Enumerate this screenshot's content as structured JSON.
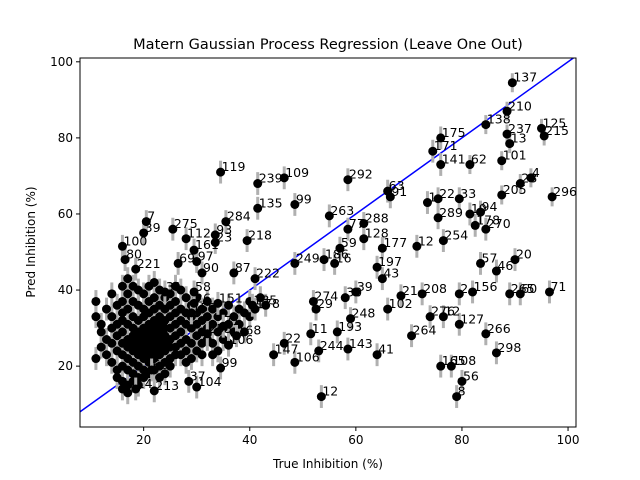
{
  "chart_data": {
    "type": "scatter",
    "title": "Matern Gaussian Process Regression (Leave One Out)",
    "xlabel": "True Inhibition (%)",
    "ylabel": "Pred Inhibition (%)",
    "xlim": [
      8,
      101.5
    ],
    "ylim": [
      4,
      101
    ],
    "xticks": [
      20,
      40,
      60,
      80,
      100
    ],
    "yticks": [
      20,
      40,
      60,
      80,
      100
    ],
    "grid": false,
    "legend": "none",
    "identity_line": {
      "from": [
        0,
        0
      ],
      "to": [
        110,
        110
      ],
      "color": "#0000ff"
    },
    "point_color": "#000000",
    "errorbar_color": "#b0b0b0",
    "labeled_points": [
      {
        "label": "137",
        "x": 89.5,
        "y": 94.5,
        "err": 2.5
      },
      {
        "label": "210",
        "x": 88.5,
        "y": 87.0,
        "err": 2.5
      },
      {
        "label": "138",
        "x": 84.5,
        "y": 83.5,
        "err": 2.5
      },
      {
        "label": "237",
        "x": 88.5,
        "y": 81.0,
        "err": 2.5
      },
      {
        "label": "125",
        "x": 95.0,
        "y": 82.5,
        "err": 2.5
      },
      {
        "label": "215",
        "x": 95.5,
        "y": 80.5,
        "err": 2.5
      },
      {
        "label": "13",
        "x": 89.0,
        "y": 78.5,
        "err": 2.5
      },
      {
        "label": "175",
        "x": 76.0,
        "y": 80.0,
        "err": 3.0
      },
      {
        "label": "171",
        "x": 74.5,
        "y": 76.5,
        "err": 3.0
      },
      {
        "label": "141",
        "x": 76.0,
        "y": 73.0,
        "err": 3.0
      },
      {
        "label": "62",
        "x": 81.5,
        "y": 73.0,
        "err": 2.5
      },
      {
        "label": "101",
        "x": 87.5,
        "y": 74.0,
        "err": 2.5
      },
      {
        "label": "4",
        "x": 93.0,
        "y": 69.5,
        "err": 2.5
      },
      {
        "label": "28",
        "x": 91.0,
        "y": 68.0,
        "err": 2.5
      },
      {
        "label": "205",
        "x": 87.5,
        "y": 65.0,
        "err": 2.5
      },
      {
        "label": "296",
        "x": 97.0,
        "y": 64.5,
        "err": 2.5
      },
      {
        "label": "119",
        "x": 34.5,
        "y": 71.0,
        "err": 3.0
      },
      {
        "label": "239",
        "x": 41.5,
        "y": 68.0,
        "err": 3.0
      },
      {
        "label": "109",
        "x": 46.5,
        "y": 69.5,
        "err": 3.0
      },
      {
        "label": "292",
        "x": 58.5,
        "y": 69.0,
        "err": 3.0
      },
      {
        "label": "63",
        "x": 66.0,
        "y": 66.0,
        "err": 3.0
      },
      {
        "label": "91",
        "x": 66.5,
        "y": 64.5,
        "err": 3.0
      },
      {
        "label": "1",
        "x": 73.5,
        "y": 63.0,
        "err": 3.0
      },
      {
        "label": "22",
        "x": 75.5,
        "y": 64.0,
        "err": 3.0
      },
      {
        "label": "33",
        "x": 79.5,
        "y": 64.0,
        "err": 3.0
      },
      {
        "label": "99",
        "x": 48.5,
        "y": 62.5,
        "err": 3.0
      },
      {
        "label": "135",
        "x": 41.5,
        "y": 61.5,
        "err": 3.0
      },
      {
        "label": "263",
        "x": 55.0,
        "y": 59.5,
        "err": 3.0
      },
      {
        "label": "289",
        "x": 75.5,
        "y": 59.0,
        "err": 3.0
      },
      {
        "label": "19",
        "x": 81.5,
        "y": 60.0,
        "err": 3.0
      },
      {
        "label": "94",
        "x": 83.5,
        "y": 60.5,
        "err": 3.0
      },
      {
        "label": "270",
        "x": 84.5,
        "y": 56.0,
        "err": 3.0
      },
      {
        "label": "178",
        "x": 82.5,
        "y": 57.0,
        "err": 3.0
      },
      {
        "label": "7",
        "x": 20.5,
        "y": 58.0,
        "err": 3.0
      },
      {
        "label": "284",
        "x": 35.5,
        "y": 58.0,
        "err": 3.0
      },
      {
        "label": "275",
        "x": 25.5,
        "y": 56.0,
        "err": 3.0
      },
      {
        "label": "288",
        "x": 61.5,
        "y": 57.5,
        "err": 3.0
      },
      {
        "label": "77",
        "x": 58.5,
        "y": 56.0,
        "err": 3.0
      },
      {
        "label": "128",
        "x": 61.5,
        "y": 53.5,
        "err": 3.0
      },
      {
        "label": "39",
        "x": 20.0,
        "y": 55.0,
        "err": 3.0
      },
      {
        "label": "112",
        "x": 28.0,
        "y": 53.5,
        "err": 3.0
      },
      {
        "label": "93",
        "x": 33.5,
        "y": 54.5,
        "err": 3.0
      },
      {
        "label": "23",
        "x": 33.5,
        "y": 52.5,
        "err": 3.0
      },
      {
        "label": "218",
        "x": 39.5,
        "y": 53.0,
        "err": 3.0
      },
      {
        "label": "254",
        "x": 76.5,
        "y": 53.0,
        "err": 3.0
      },
      {
        "label": "12",
        "x": 71.5,
        "y": 51.5,
        "err": 3.0
      },
      {
        "label": "177",
        "x": 65.0,
        "y": 51.0,
        "err": 3.0
      },
      {
        "label": "59",
        "x": 57.0,
        "y": 51.0,
        "err": 3.0
      },
      {
        "label": "100",
        "x": 16.0,
        "y": 51.5,
        "err": 3.0
      },
      {
        "label": "161",
        "x": 29.5,
        "y": 50.5,
        "err": 3.0
      },
      {
        "label": "20",
        "x": 90.0,
        "y": 48.0,
        "err": 3.0
      },
      {
        "label": "186",
        "x": 54.0,
        "y": 48.0,
        "err": 3.0
      },
      {
        "label": "16",
        "x": 56.0,
        "y": 47.0,
        "err": 3.0
      },
      {
        "label": "249",
        "x": 48.5,
        "y": 47.0,
        "err": 3.0
      },
      {
        "label": "69",
        "x": 26.5,
        "y": 47.0,
        "err": 3.0
      },
      {
        "label": "197",
        "x": 64.0,
        "y": 46.0,
        "err": 3.0
      },
      {
        "label": "57",
        "x": 83.5,
        "y": 47.0,
        "err": 3.0
      },
      {
        "label": "46",
        "x": 86.5,
        "y": 45.0,
        "err": 3.0
      },
      {
        "label": "90",
        "x": 31.0,
        "y": 44.5,
        "err": 3.0
      },
      {
        "label": "87",
        "x": 37.0,
        "y": 44.5,
        "err": 3.0
      },
      {
        "label": "43",
        "x": 65.0,
        "y": 43.0,
        "err": 3.0
      },
      {
        "label": "222",
        "x": 41.0,
        "y": 43.0,
        "err": 3.0
      },
      {
        "label": "208",
        "x": 72.5,
        "y": 39.0,
        "err": 3.0
      },
      {
        "label": "2",
        "x": 79.5,
        "y": 39.0,
        "err": 3.0
      },
      {
        "label": "156",
        "x": 82.0,
        "y": 39.5,
        "err": 3.0
      },
      {
        "label": "71",
        "x": 96.5,
        "y": 39.5,
        "err": 3.0
      },
      {
        "label": "265",
        "x": 89.0,
        "y": 39.0,
        "err": 3.0
      },
      {
        "label": "60",
        "x": 91.0,
        "y": 39.0,
        "err": 3.0
      },
      {
        "label": "39",
        "x": 60.0,
        "y": 39.5,
        "err": 3.0
      },
      {
        "label": "30",
        "x": 58.0,
        "y": 38.0,
        "err": 3.0
      },
      {
        "label": "21",
        "x": 68.5,
        "y": 38.5,
        "err": 3.0
      },
      {
        "label": "274",
        "x": 52.0,
        "y": 37.0,
        "err": 3.0
      },
      {
        "label": "102",
        "x": 66.0,
        "y": 35.0,
        "err": 3.0
      },
      {
        "label": "29",
        "x": 52.5,
        "y": 35.0,
        "err": 3.0
      },
      {
        "label": "185",
        "x": 40.5,
        "y": 36.0,
        "err": 3.0
      },
      {
        "label": "151",
        "x": 34.0,
        "y": 36.5,
        "err": 3.0
      },
      {
        "label": "248",
        "x": 59.0,
        "y": 32.5,
        "err": 3.0
      },
      {
        "label": "276",
        "x": 74.0,
        "y": 33.0,
        "err": 3.0
      },
      {
        "label": "12",
        "x": 76.5,
        "y": 33.0,
        "err": 3.0
      },
      {
        "label": "127",
        "x": 79.5,
        "y": 31.0,
        "err": 3.0
      },
      {
        "label": "266",
        "x": 84.5,
        "y": 28.5,
        "err": 3.0
      },
      {
        "label": "264",
        "x": 70.5,
        "y": 28.0,
        "err": 3.0
      },
      {
        "label": "193",
        "x": 56.5,
        "y": 29.0,
        "err": 3.0
      },
      {
        "label": "11",
        "x": 51.5,
        "y": 28.5,
        "err": 3.0
      },
      {
        "label": "22",
        "x": 46.5,
        "y": 26.0,
        "err": 3.0
      },
      {
        "label": "244",
        "x": 53.0,
        "y": 24.0,
        "err": 3.0
      },
      {
        "label": "143",
        "x": 58.5,
        "y": 24.5,
        "err": 3.0
      },
      {
        "label": "147",
        "x": 44.5,
        "y": 23.0,
        "err": 3.0
      },
      {
        "label": "106",
        "x": 48.5,
        "y": 21.0,
        "err": 3.0
      },
      {
        "label": "41",
        "x": 64.0,
        "y": 23.0,
        "err": 3.0
      },
      {
        "label": "298",
        "x": 86.5,
        "y": 23.5,
        "err": 3.0
      },
      {
        "label": "165",
        "x": 76.0,
        "y": 20.0,
        "err": 3.0
      },
      {
        "label": "108",
        "x": 78.0,
        "y": 20.0,
        "err": 3.0
      },
      {
        "label": "56",
        "x": 80.0,
        "y": 16.0,
        "err": 3.0
      },
      {
        "label": "8",
        "x": 79.0,
        "y": 12.0,
        "err": 3.0
      },
      {
        "label": "12",
        "x": 53.5,
        "y": 12.0,
        "err": 3.0
      },
      {
        "label": "99",
        "x": 34.5,
        "y": 19.5,
        "err": 3.0
      },
      {
        "label": "37",
        "x": 28.5,
        "y": 16.0,
        "err": 3.0
      },
      {
        "label": "104",
        "x": 30.0,
        "y": 14.5,
        "err": 3.0
      },
      {
        "label": "213",
        "x": 22.0,
        "y": 13.5,
        "err": 3.0
      },
      {
        "label": "14",
        "x": 18.5,
        "y": 14.0,
        "err": 3.0
      },
      {
        "label": "221",
        "x": 18.5,
        "y": 45.5,
        "err": 3.0
      },
      {
        "label": "80",
        "x": 16.5,
        "y": 48.0,
        "err": 3.0
      },
      {
        "label": "97",
        "x": 30.0,
        "y": 47.5,
        "err": 3.0
      },
      {
        "label": "58",
        "x": 29.5,
        "y": 39.5,
        "err": 3.0
      },
      {
        "label": "31",
        "x": 24.0,
        "y": 39.5,
        "err": 3.0
      },
      {
        "label": "178",
        "x": 41.0,
        "y": 35.0,
        "err": 3.0
      },
      {
        "label": "26",
        "x": 29.5,
        "y": 36.5,
        "err": 3.0
      },
      {
        "label": "159",
        "x": 29.0,
        "y": 34.0,
        "err": 3.0
      },
      {
        "label": "168",
        "x": 37.5,
        "y": 28.0,
        "err": 3.0
      },
      {
        "label": "106",
        "x": 36.0,
        "y": 25.5,
        "err": 3.0
      },
      {
        "label": "255",
        "x": 32.0,
        "y": 28.5,
        "err": 3.0
      },
      {
        "label": "71",
        "x": 35.0,
        "y": 30.5,
        "err": 3.0
      },
      {
        "label": "66",
        "x": 21.5,
        "y": 19.0,
        "err": 3.0
      }
    ],
    "cluster_points": [
      [
        11,
        37
      ],
      [
        11,
        33
      ],
      [
        12,
        31
      ],
      [
        12,
        25
      ],
      [
        11,
        22
      ],
      [
        12,
        29
      ],
      [
        13,
        35
      ],
      [
        13,
        27
      ],
      [
        13,
        23
      ],
      [
        14,
        39
      ],
      [
        14,
        33
      ],
      [
        14,
        30
      ],
      [
        14,
        26
      ],
      [
        14,
        21
      ],
      [
        15,
        36
      ],
      [
        15,
        31
      ],
      [
        15,
        28
      ],
      [
        15,
        24
      ],
      [
        15,
        19
      ],
      [
        15,
        17
      ],
      [
        16,
        41
      ],
      [
        16,
        37
      ],
      [
        16,
        34
      ],
      [
        16,
        32
      ],
      [
        16,
        29
      ],
      [
        16,
        26
      ],
      [
        16,
        23
      ],
      [
        16,
        20
      ],
      [
        16,
        16
      ],
      [
        16,
        14
      ],
      [
        17,
        43
      ],
      [
        17,
        39
      ],
      [
        17,
        35
      ],
      [
        17,
        31
      ],
      [
        17,
        27
      ],
      [
        17,
        25
      ],
      [
        17,
        22
      ],
      [
        17,
        19
      ],
      [
        17,
        15
      ],
      [
        17,
        13
      ],
      [
        18,
        41
      ],
      [
        18,
        37
      ],
      [
        18,
        33
      ],
      [
        18,
        30
      ],
      [
        18,
        28
      ],
      [
        18,
        26
      ],
      [
        18,
        24
      ],
      [
        18,
        21
      ],
      [
        18,
        18
      ],
      [
        18,
        16
      ],
      [
        19,
        40
      ],
      [
        19,
        36
      ],
      [
        19,
        32
      ],
      [
        19,
        29
      ],
      [
        19,
        27
      ],
      [
        19,
        25
      ],
      [
        19,
        23
      ],
      [
        19,
        20
      ],
      [
        19,
        17
      ],
      [
        19,
        15
      ],
      [
        20,
        39
      ],
      [
        20,
        35
      ],
      [
        20,
        33
      ],
      [
        20,
        30
      ],
      [
        20,
        28
      ],
      [
        20,
        26
      ],
      [
        20,
        24
      ],
      [
        20,
        22
      ],
      [
        20,
        19
      ],
      [
        20,
        17
      ],
      [
        21,
        41
      ],
      [
        21,
        37
      ],
      [
        21,
        34
      ],
      [
        21,
        31
      ],
      [
        21,
        29
      ],
      [
        21,
        27
      ],
      [
        21,
        25
      ],
      [
        21,
        23
      ],
      [
        21,
        21
      ],
      [
        21,
        18
      ],
      [
        22,
        42
      ],
      [
        22,
        38
      ],
      [
        22,
        35
      ],
      [
        22,
        32
      ],
      [
        22,
        30
      ],
      [
        22,
        28
      ],
      [
        22,
        26
      ],
      [
        22,
        24
      ],
      [
        22,
        22
      ],
      [
        22,
        19
      ],
      [
        23,
        40
      ],
      [
        23,
        36
      ],
      [
        23,
        33
      ],
      [
        23,
        31
      ],
      [
        23,
        29
      ],
      [
        23,
        27
      ],
      [
        23,
        25
      ],
      [
        23,
        23
      ],
      [
        23,
        20
      ],
      [
        23,
        17
      ],
      [
        24,
        38
      ],
      [
        24,
        35
      ],
      [
        24,
        32
      ],
      [
        24,
        30
      ],
      [
        24,
        28
      ],
      [
        24,
        26
      ],
      [
        24,
        24
      ],
      [
        24,
        21
      ],
      [
        24,
        18
      ],
      [
        25,
        39
      ],
      [
        25,
        36
      ],
      [
        25,
        33
      ],
      [
        25,
        30
      ],
      [
        25,
        27
      ],
      [
        25,
        25
      ],
      [
        25,
        22
      ],
      [
        25,
        20
      ],
      [
        26,
        41
      ],
      [
        26,
        37
      ],
      [
        26,
        34
      ],
      [
        26,
        31
      ],
      [
        26,
        28
      ],
      [
        26,
        25
      ],
      [
        26,
        23
      ],
      [
        27,
        40
      ],
      [
        27,
        35
      ],
      [
        27,
        32
      ],
      [
        27,
        29
      ],
      [
        27,
        26
      ],
      [
        27,
        23
      ],
      [
        28,
        38
      ],
      [
        28,
        34
      ],
      [
        28,
        31
      ],
      [
        28,
        27
      ],
      [
        28,
        24
      ],
      [
        28,
        21
      ],
      [
        29,
        36
      ],
      [
        29,
        33
      ],
      [
        29,
        30
      ],
      [
        29,
        26
      ],
      [
        29,
        22
      ],
      [
        30,
        38
      ],
      [
        30,
        34
      ],
      [
        30,
        31
      ],
      [
        30,
        28
      ],
      [
        30,
        24
      ],
      [
        31,
        35
      ],
      [
        31,
        32
      ],
      [
        31,
        29
      ],
      [
        31,
        26
      ],
      [
        31,
        23
      ],
      [
        32,
        37
      ],
      [
        32,
        33
      ],
      [
        32,
        30
      ],
      [
        32,
        27
      ],
      [
        33,
        35
      ],
      [
        33,
        31
      ],
      [
        33,
        26
      ],
      [
        33,
        23
      ],
      [
        34,
        33
      ],
      [
        34,
        29
      ],
      [
        34,
        24
      ],
      [
        35,
        34
      ],
      [
        35,
        30
      ],
      [
        35,
        27
      ],
      [
        36,
        36
      ],
      [
        36,
        31
      ],
      [
        36,
        26
      ],
      [
        37,
        33
      ],
      [
        37,
        29
      ],
      [
        38,
        35
      ],
      [
        38,
        31
      ],
      [
        39,
        34
      ],
      [
        39,
        29
      ],
      [
        40,
        37
      ],
      [
        40,
        33
      ],
      [
        42,
        38
      ],
      [
        43,
        36
      ]
    ]
  }
}
